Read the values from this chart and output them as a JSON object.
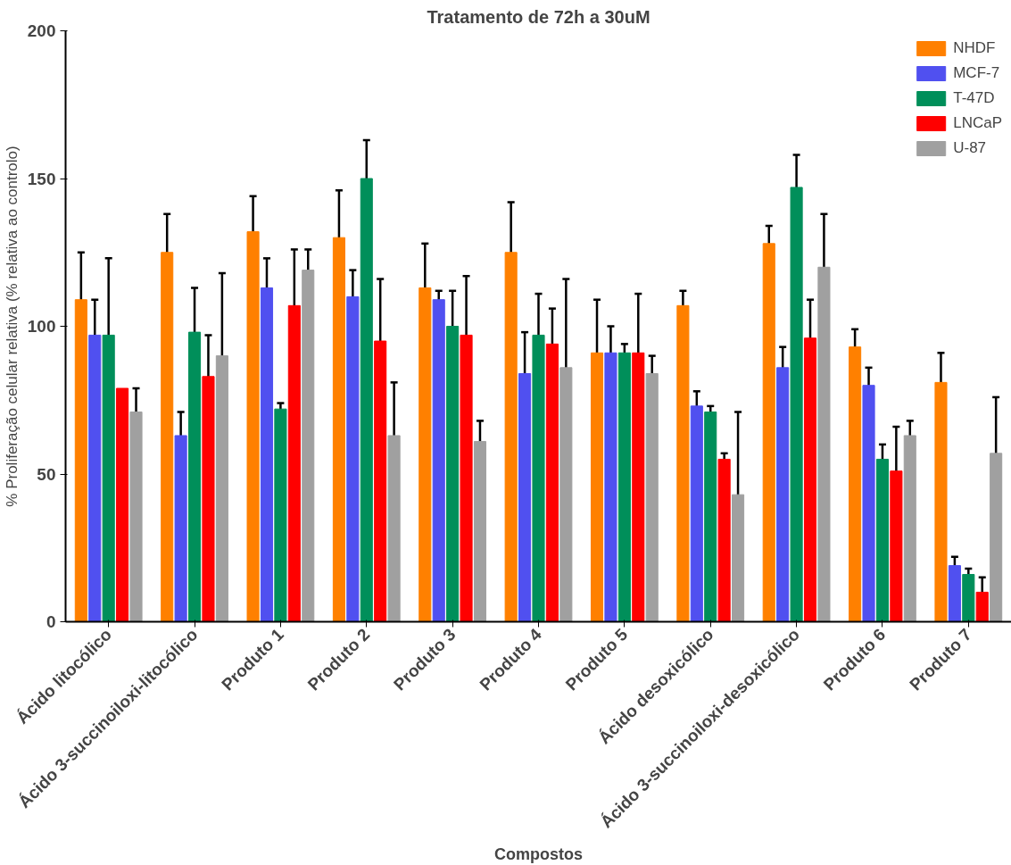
{
  "chart_data": {
    "type": "bar",
    "title": "Tratamento de 72h a 30uM",
    "xlabel": "Compostos",
    "ylabel": "% Proliferação celular relativa (% relativa ao controlo)",
    "categories": [
      "Ácido litocólico",
      "Ácido 3-succinoiloxi-litocólico",
      "Produto 1",
      "Produto 2",
      "Produto 3",
      "Produto 4",
      "Produto 5",
      "Ácido desoxicólico",
      "Ácido 3-succinoiloxi-desoxicólico",
      "Produto 6",
      "Produto 7"
    ],
    "ylim": [
      0,
      200
    ],
    "yticks": [
      0,
      50,
      100,
      150,
      200
    ],
    "grid": false,
    "legend": "top right",
    "series": [
      {
        "name": "NHDF",
        "color": "#ff8000",
        "values": [
          109,
          125,
          132,
          130,
          113,
          125,
          91,
          107,
          128,
          93,
          81
        ],
        "errors": [
          16,
          13,
          12,
          16,
          15,
          17,
          18,
          5,
          6,
          6,
          10
        ]
      },
      {
        "name": "MCF-7",
        "color": "#5050f0",
        "values": [
          97,
          63,
          113,
          110,
          109,
          84,
          91,
          73,
          86,
          80,
          19
        ],
        "errors": [
          12,
          8,
          10,
          9,
          3,
          14,
          9,
          5,
          7,
          6,
          3
        ]
      },
      {
        "name": "T-47D",
        "color": "#008f5a",
        "values": [
          97,
          98,
          72,
          150,
          100,
          97,
          91,
          71,
          147,
          55,
          16
        ],
        "errors": [
          26,
          15,
          2,
          13,
          12,
          14,
          3,
          2,
          11,
          5,
          2
        ]
      },
      {
        "name": "LNCaP",
        "color": "#ff0000",
        "values": [
          79,
          83,
          107,
          95,
          97,
          94,
          91,
          55,
          96,
          51,
          10
        ],
        "errors": [
          null,
          14,
          19,
          21,
          20,
          12,
          20,
          2,
          13,
          15,
          5
        ]
      },
      {
        "name": "U-87",
        "color": "#a0a0a0",
        "values": [
          71,
          90,
          119,
          63,
          61,
          86,
          84,
          43,
          120,
          63,
          57
        ],
        "errors": [
          8,
          28,
          7,
          18,
          7,
          30,
          6,
          28,
          18,
          5,
          19
        ]
      }
    ]
  }
}
